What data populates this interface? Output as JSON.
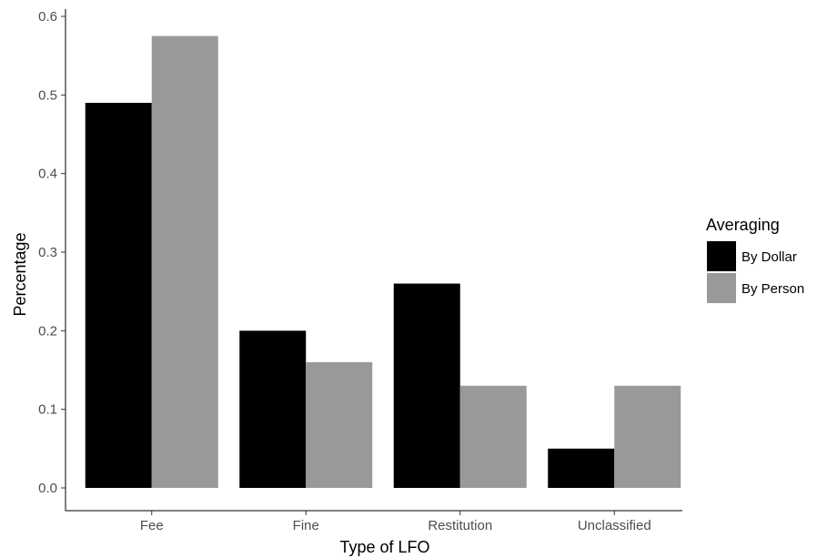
{
  "chart_data": {
    "type": "bar",
    "xlabel": "Type of LFO",
    "ylabel": "Percentage",
    "categories": [
      "Fee",
      "Fine",
      "Restitution",
      "Unclassified"
    ],
    "series": [
      {
        "name": "By Dollar",
        "values": [
          0.49,
          0.2,
          0.26,
          0.05
        ],
        "color": "#000000"
      },
      {
        "name": "By Person",
        "values": [
          0.575,
          0.16,
          0.13,
          0.13
        ],
        "color": "#999999"
      }
    ],
    "ylim": [
      0,
      0.6
    ],
    "yticks": [
      0.0,
      0.1,
      0.2,
      0.3,
      0.4,
      0.5,
      0.6
    ],
    "ytick_labels": [
      "0.0",
      "0.1",
      "0.2",
      "0.3",
      "0.4",
      "0.5",
      "0.6"
    ],
    "grid": false,
    "legend": {
      "title": "Averaging",
      "position": "right"
    }
  }
}
